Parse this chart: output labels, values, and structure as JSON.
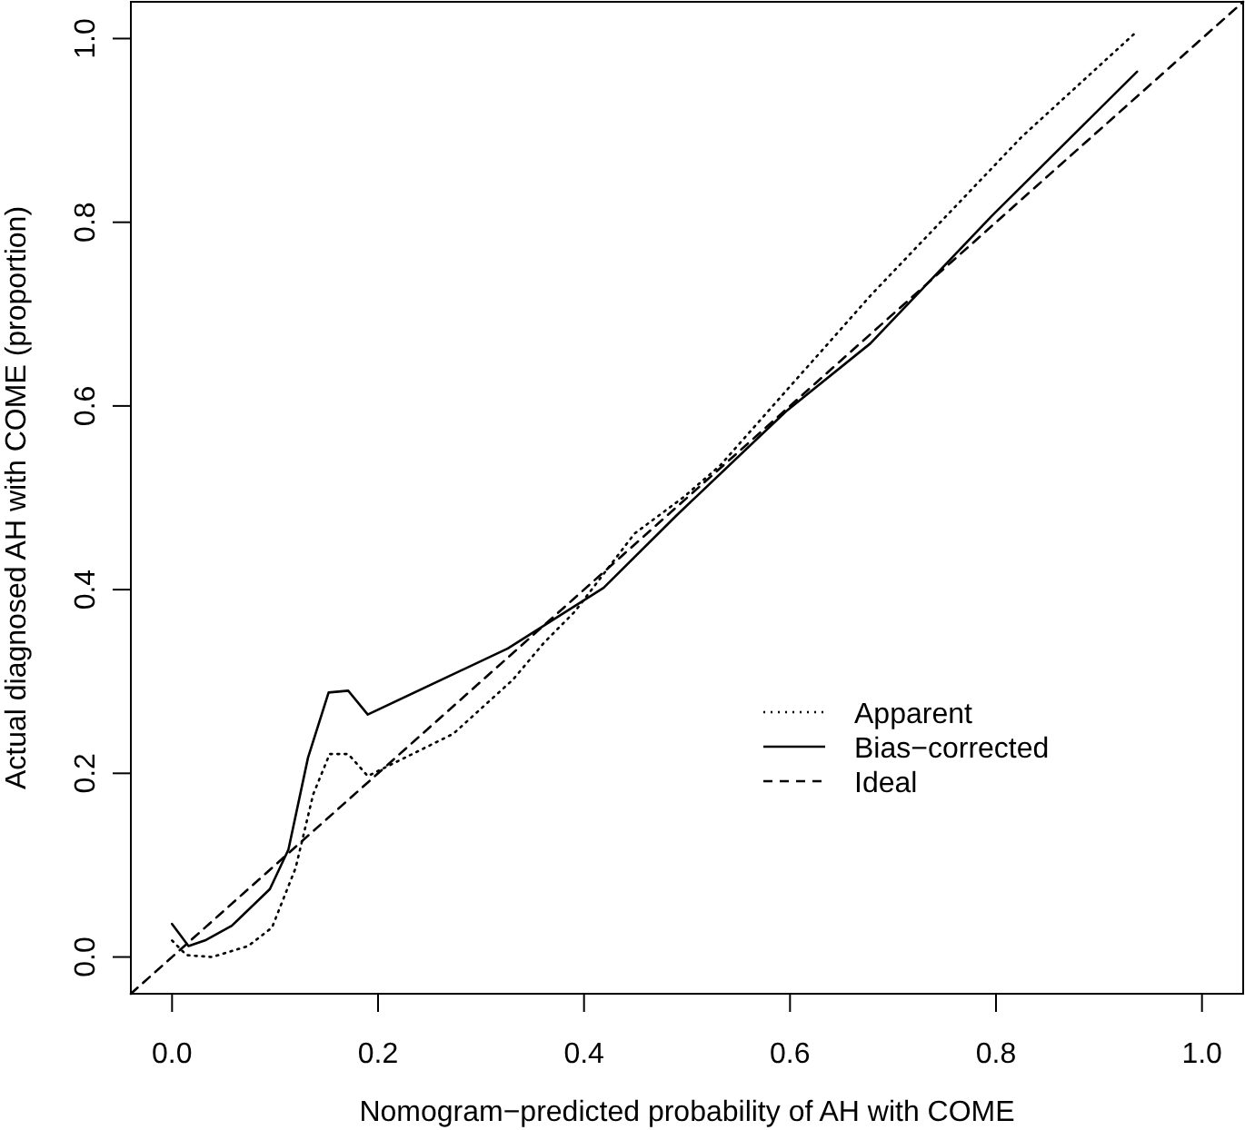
{
  "chart_data": {
    "type": "line",
    "xlabel": "Nomogram−predicted probability of AH with COME",
    "ylabel": "Actual diagnosed AH with COME (proportion)",
    "xlim": [
      -0.04,
      1.04
    ],
    "ylim": [
      -0.04,
      1.04
    ],
    "xticks": [
      {
        "value": 0,
        "label": "0.0"
      },
      0.2,
      0.4,
      0.6,
      0.8,
      {
        "value": 1,
        "label": "1.0"
      }
    ],
    "yticks": [
      {
        "value": 0,
        "label": "0.0"
      },
      0.2,
      0.4,
      0.6,
      0.8,
      {
        "value": 1,
        "label": "1.0"
      }
    ],
    "legend": "right",
    "grid": false,
    "series": [
      {
        "name": "Apparent",
        "color": "#000000",
        "line_style": "dotted",
        "x": [
          0,
          0.014,
          0.039,
          0.074,
          0.097,
          0.12,
          0.137,
          0.153,
          0.171,
          0.19,
          0.273,
          0.331,
          0.361,
          0.391,
          0.449,
          0.497,
          0.532,
          0.678,
          0.825,
          0.937
        ],
        "values": [
          0.018,
          0.002,
          0,
          0.012,
          0.032,
          0.097,
          0.177,
          0.221,
          0.221,
          0.197,
          0.243,
          0.302,
          0.342,
          0.376,
          0.461,
          0.501,
          0.535,
          0.72,
          0.893,
          1.008
        ]
      },
      {
        "name": "Bias−corrected",
        "color": "#000000",
        "line_style": "solid",
        "x": [
          0,
          0.016,
          0.032,
          0.058,
          0.095,
          0.113,
          0.132,
          0.152,
          0.171,
          0.19,
          0.326,
          0.419,
          0.49,
          0.596,
          0.678,
          0.796,
          0.937
        ],
        "values": [
          0.036,
          0.012,
          0.018,
          0.034,
          0.074,
          0.117,
          0.217,
          0.288,
          0.29,
          0.264,
          0.336,
          0.402,
          0.481,
          0.594,
          0.668,
          0.807,
          0.964
        ]
      },
      {
        "name": "Ideal",
        "color": "#000000",
        "line_style": "dashed",
        "x": [
          -0.04,
          1.04
        ],
        "values": [
          -0.04,
          1.04
        ]
      }
    ]
  }
}
